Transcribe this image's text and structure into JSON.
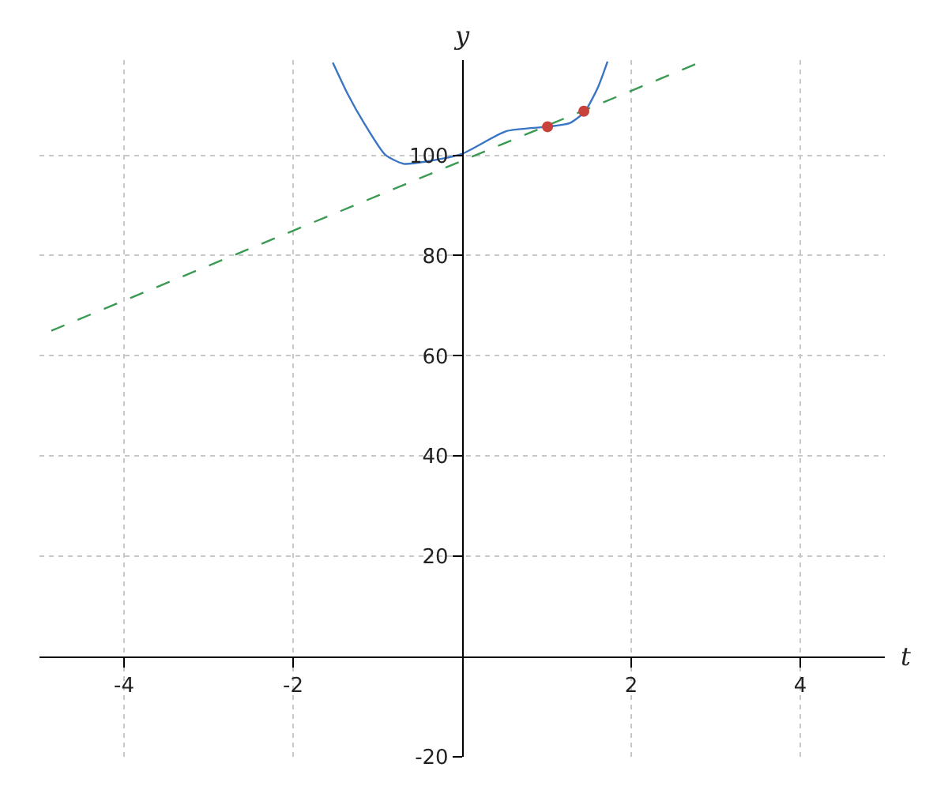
{
  "chart_data": {
    "type": "line",
    "xlabel": "t",
    "ylabel": "y",
    "xlim": [
      -5,
      5
    ],
    "ylim": [
      -20,
      119
    ],
    "xticks": [
      -4,
      -2,
      2,
      4
    ],
    "yticks": [
      -20,
      20,
      40,
      60,
      80,
      100
    ],
    "grid": true,
    "series": [
      {
        "color": "#3a75c4",
        "line_style": "solid",
        "marker": "none",
        "x": [
          -1.53,
          -1.35,
          -1.16,
          -0.91,
          -0.69,
          -0.41,
          0,
          0.52,
          1.02,
          1.27,
          1.45,
          1.61,
          1.72
        ],
        "values": [
          118.5,
          112.1,
          106.4,
          100.1,
          98.3,
          98.8,
          100.3,
          104.8,
          105.7,
          106.4,
          108.7,
          113.7,
          118.7
        ]
      },
      {
        "color": "#3b9a52",
        "line_style": "dashed",
        "marker": "none",
        "x": [
          -4.86,
          2.88
        ],
        "values": [
          65,
          119
        ]
      },
      {
        "type": "scatter",
        "color": "#c8413a",
        "marker": "circle",
        "x": [
          1.01,
          1.44
        ],
        "values": [
          105.7,
          108.8
        ]
      }
    ]
  }
}
